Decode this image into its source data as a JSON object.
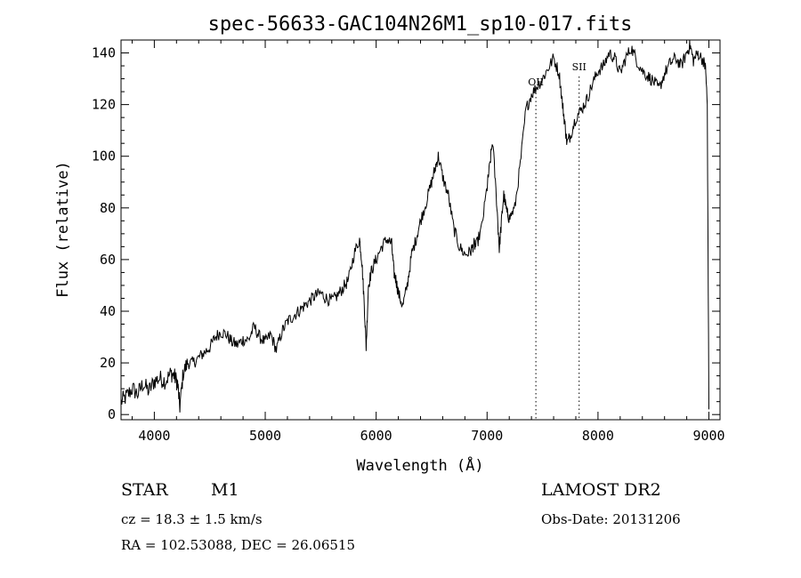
{
  "chart_data": {
    "type": "line",
    "title": "spec-56633-GAC104N26M1_sp10-017.fits",
    "xlabel": "Wavelength (Å)",
    "ylabel": "Flux (relative)",
    "xlim": [
      3700,
      9100
    ],
    "ylim": [
      -2,
      145
    ],
    "xticks": [
      4000,
      5000,
      6000,
      7000,
      8000,
      9000
    ],
    "yticks": [
      0,
      20,
      40,
      60,
      80,
      100,
      120,
      140
    ],
    "grid": false,
    "line_color": "#000000",
    "lines": [
      {
        "label": "OII",
        "wavelength": 7440
      },
      {
        "label": "SII",
        "wavelength": 7830
      }
    ],
    "series": [
      {
        "x": [
          3700,
          3750,
          3800,
          3850,
          3900,
          3950,
          4000,
          4050,
          4100,
          4150,
          4180,
          4210,
          4230,
          4260,
          4300,
          4350,
          4400,
          4450,
          4500,
          4550,
          4600,
          4650,
          4700,
          4750,
          4800,
          4850,
          4900,
          4950,
          5000,
          5050,
          5100,
          5150,
          5200,
          5250,
          5300,
          5350,
          5400,
          5450,
          5500,
          5550,
          5600,
          5650,
          5700,
          5750,
          5800,
          5850,
          5870,
          5890,
          5910,
          5930,
          5960,
          6000,
          6050,
          6100,
          6140,
          6160,
          6180,
          6200,
          6240,
          6280,
          6320,
          6360,
          6400,
          6450,
          6500,
          6530,
          6560,
          6600,
          6650,
          6700,
          6750,
          6800,
          6850,
          6880,
          6900,
          6950,
          7000,
          7020,
          7050,
          7090,
          7110,
          7130,
          7150,
          7180,
          7200,
          7250,
          7300,
          7350,
          7400,
          7450,
          7500,
          7550,
          7600,
          7650,
          7680,
          7700,
          7720,
          7750,
          7800,
          7850,
          7900,
          7950,
          8000,
          8050,
          8100,
          8150,
          8200,
          8250,
          8300,
          8350,
          8400,
          8450,
          8500,
          8550,
          8600,
          8650,
          8700,
          8750,
          8800,
          8830,
          8860,
          8900,
          8950,
          8970,
          8985,
          9000
        ],
        "y": [
          5,
          7,
          10,
          8,
          12,
          9,
          13,
          14,
          13,
          16,
          15,
          12,
          3,
          16,
          20,
          20,
          22,
          24,
          26,
          30,
          32,
          31,
          28,
          27,
          29,
          29,
          34,
          30,
          28,
          31,
          25,
          32,
          36,
          38,
          40,
          42,
          44,
          46,
          47,
          45,
          44,
          46,
          49,
          52,
          62,
          68,
          60,
          45,
          26,
          50,
          56,
          60,
          65,
          68,
          66,
          55,
          52,
          47,
          42,
          50,
          62,
          68,
          75,
          82,
          90,
          95,
          100,
          92,
          85,
          72,
          65,
          62,
          63,
          66,
          65,
          72,
          88,
          95,
          106,
          80,
          64,
          75,
          85,
          78,
          76,
          80,
          97,
          118,
          124,
          127,
          130,
          134,
          138,
          132,
          120,
          113,
          105,
          108,
          115,
          118,
          122,
          128,
          133,
          135,
          140,
          138,
          132,
          138,
          142,
          137,
          133,
          131,
          129,
          126,
          132,
          136,
          138,
          135,
          140,
          143,
          137,
          140,
          137,
          134,
          120,
          2
        ]
      }
    ]
  },
  "info": {
    "class": "STAR",
    "subclass": "M1",
    "survey": "LAMOST DR2",
    "cz": "cz = 18.3 ± 1.5 km/s",
    "obs_date": "Obs-Date: 20131206",
    "radec": "RA = 102.53088, DEC =  26.06515"
  }
}
